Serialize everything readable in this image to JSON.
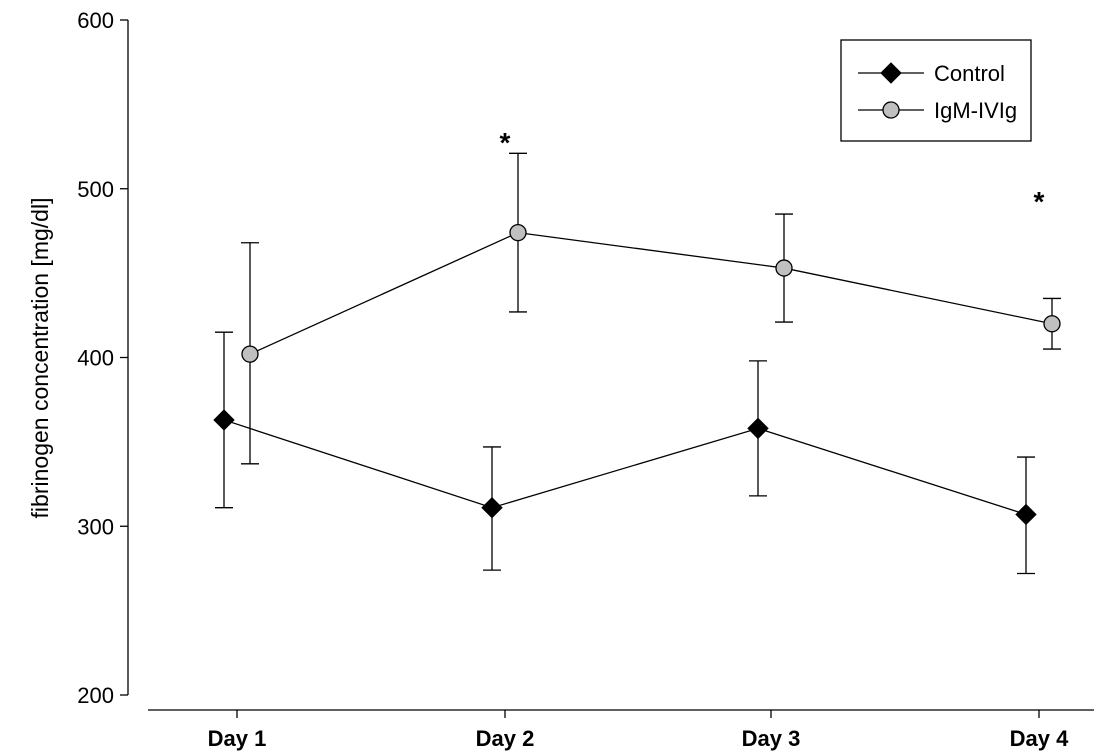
{
  "chart_data": {
    "type": "line",
    "categories": [
      "Day 1",
      "Day 2",
      "Day 3",
      "Day 4"
    ],
    "ylabel": "fibrinogen concentration [mg/dl]",
    "xlabel": "",
    "ylim": [
      200,
      600
    ],
    "yticks": [
      200,
      300,
      400,
      500,
      600
    ],
    "grid": false,
    "legend_position": "top-right",
    "series": [
      {
        "name": "Control",
        "marker": "diamond",
        "color": "#000000",
        "values": [
          363,
          311,
          358,
          307
        ],
        "err_upper": [
          415,
          347,
          398,
          341
        ],
        "err_lower": [
          311,
          274,
          318,
          272
        ]
      },
      {
        "name": "IgM-IVIg",
        "marker": "circle",
        "color": "#c0c0c0",
        "values": [
          402,
          474,
          453,
          420
        ],
        "err_upper": [
          468,
          521,
          485,
          435
        ],
        "err_lower": [
          337,
          427,
          421,
          405
        ]
      }
    ],
    "annotations": [
      {
        "category": "Day 2",
        "text": "*",
        "y": 530
      },
      {
        "category": "Day 4",
        "text": "*",
        "y": 495
      }
    ]
  }
}
